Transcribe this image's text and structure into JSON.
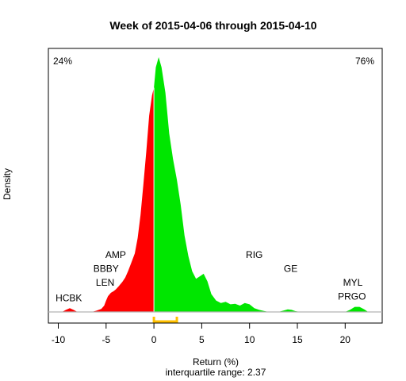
{
  "chart_data": {
    "type": "area",
    "title": "Week of 2015-04-06 through 2015-04-10",
    "xlabel": "Return (%)",
    "subtitle": "interquartile range: 2.37",
    "ylabel": "Density",
    "xlim": [
      -11,
      24
    ],
    "ylim": [
      0,
      1
    ],
    "xticks": [
      -10,
      -5,
      0,
      5,
      10,
      15,
      20
    ],
    "x_tick_labels": [
      "-10",
      "-5",
      "0",
      "5",
      "10",
      "15",
      "20"
    ],
    "negative_share": "24%",
    "positive_share": "76%",
    "colors": {
      "negative": "#ff0000",
      "positive": "#00e600",
      "iqr": "#ffc000",
      "baseline": "#b3b3b3"
    },
    "interquartile_range": {
      "low": 0.0,
      "high": 2.4,
      "label": "interquartile range: 2.37"
    },
    "density": {
      "x": [
        -9.6,
        -9.2,
        -8.8,
        -8.4,
        -8.0,
        -7.6,
        -6.5,
        -6.0,
        -5.5,
        -5.2,
        -5.0,
        -4.8,
        -4.5,
        -4.2,
        -4.0,
        -3.7,
        -3.3,
        -3.0,
        -2.7,
        -2.4,
        -2.0,
        -1.7,
        -1.4,
        -1.1,
        -0.8,
        -0.5,
        -0.2,
        0.0,
        0.2,
        0.5,
        0.8,
        1.2,
        1.6,
        2.0,
        2.4,
        2.8,
        3.2,
        3.6,
        4.0,
        4.4,
        4.8,
        5.2,
        5.6,
        6.0,
        6.5,
        7.0,
        7.5,
        8.0,
        8.5,
        9.0,
        9.5,
        10.0,
        10.5,
        11.0,
        11.5,
        12.0,
        13.0,
        13.6,
        14.0,
        14.4,
        14.8,
        15.3,
        20.0,
        20.5,
        21.0,
        21.5,
        22.0,
        22.4
      ],
      "y": [
        0,
        0.008,
        0.015,
        0.008,
        0,
        0,
        0,
        0.005,
        0.012,
        0.025,
        0.045,
        0.062,
        0.075,
        0.082,
        0.088,
        0.1,
        0.118,
        0.135,
        0.16,
        0.19,
        0.23,
        0.29,
        0.38,
        0.5,
        0.63,
        0.77,
        0.85,
        0.88,
        0.96,
        1.0,
        0.96,
        0.86,
        0.7,
        0.6,
        0.52,
        0.42,
        0.3,
        0.22,
        0.16,
        0.13,
        0.14,
        0.15,
        0.12,
        0.07,
        0.045,
        0.035,
        0.04,
        0.03,
        0.032,
        0.025,
        0.035,
        0.03,
        0.015,
        0.008,
        0.004,
        0,
        0,
        0.006,
        0.01,
        0.008,
        0.003,
        0,
        0,
        0.008,
        0.02,
        0.02,
        0.01,
        0
      ]
    },
    "labels": [
      {
        "text": "HCBK",
        "x": -8.9,
        "y": 0.042
      },
      {
        "text": "LEN",
        "x": -5.1,
        "y": 0.103
      },
      {
        "text": "BBBY",
        "x": -5.0,
        "y": 0.157
      },
      {
        "text": "AMP",
        "x": -4.0,
        "y": 0.212
      },
      {
        "text": "RIG",
        "x": 10.5,
        "y": 0.212
      },
      {
        "text": "GE",
        "x": 14.3,
        "y": 0.157
      },
      {
        "text": "MYL",
        "x": 20.8,
        "y": 0.103
      },
      {
        "text": "PRGO",
        "x": 20.7,
        "y": 0.048
      }
    ]
  }
}
